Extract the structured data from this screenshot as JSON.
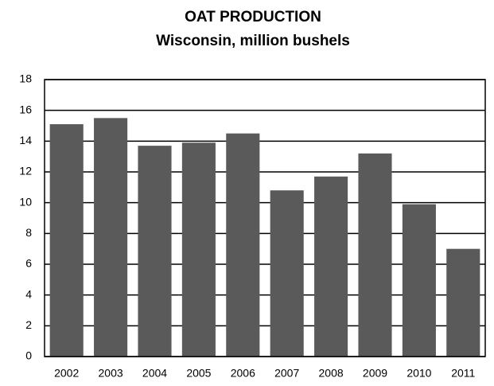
{
  "chart_data": {
    "type": "bar",
    "title": "OAT PRODUCTION",
    "subtitle": "Wisconsin, million bushels",
    "categories": [
      "2002",
      "2003",
      "2004",
      "2005",
      "2006",
      "2007",
      "2008",
      "2009",
      "2010",
      "2011"
    ],
    "values": [
      15.1,
      15.5,
      13.7,
      13.9,
      14.5,
      10.8,
      11.7,
      13.2,
      9.9,
      7.0
    ],
    "color": "#5a5a5a",
    "ylim": [
      0,
      18
    ],
    "yticks": [
      0,
      2,
      4,
      6,
      8,
      10,
      12,
      14,
      16,
      18
    ],
    "grid": true
  }
}
